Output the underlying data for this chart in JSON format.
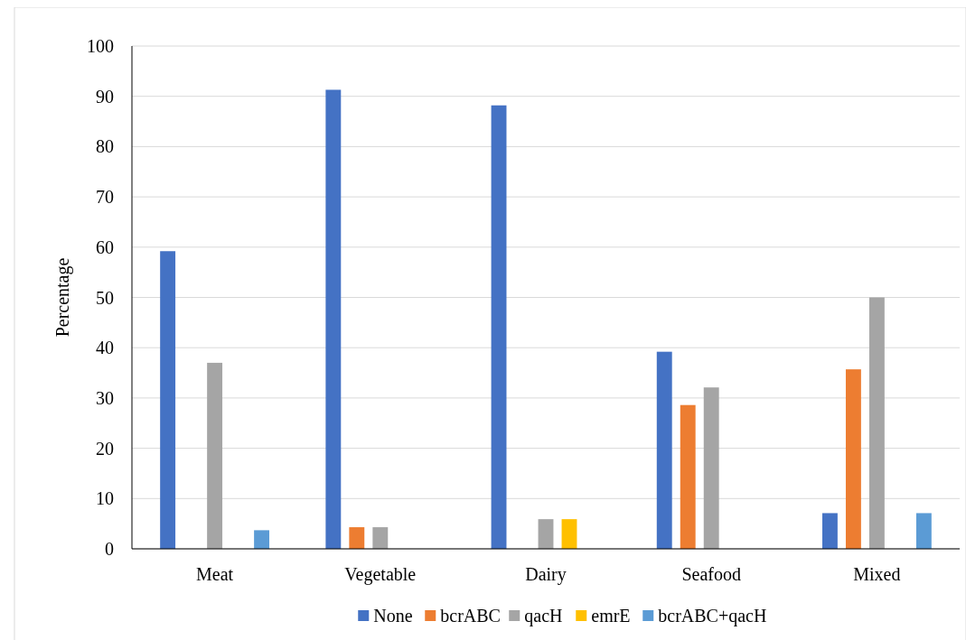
{
  "chart_data": {
    "type": "bar",
    "ylabel": "Percentage",
    "categories": [
      "Meat",
      "Vegetable",
      "Dairy",
      "Seafood",
      "Mixed"
    ],
    "series": [
      {
        "name": "None",
        "color": "#4472c4",
        "values": [
          59.2,
          91.3,
          88.2,
          39.2,
          7.1
        ]
      },
      {
        "name": "bcrABC",
        "color": "#ed7d31",
        "values": [
          0,
          4.3,
          0,
          28.6,
          35.7
        ]
      },
      {
        "name": "qacH",
        "color": "#a5a5a5",
        "values": [
          37,
          4.3,
          5.9,
          32.1,
          50
        ]
      },
      {
        "name": "emrE",
        "color": "#ffc000",
        "values": [
          0,
          0,
          5.9,
          0,
          0
        ]
      },
      {
        "name": "bcrABC+qacH",
        "color": "#5b9bd5",
        "values": [
          3.7,
          0,
          0,
          0,
          7.1
        ]
      }
    ],
    "ylim": [
      0,
      100
    ],
    "yticks": [
      0,
      10,
      20,
      30,
      40,
      50,
      60,
      70,
      80,
      90,
      100
    ],
    "grid": "y",
    "legend": "bottom"
  }
}
